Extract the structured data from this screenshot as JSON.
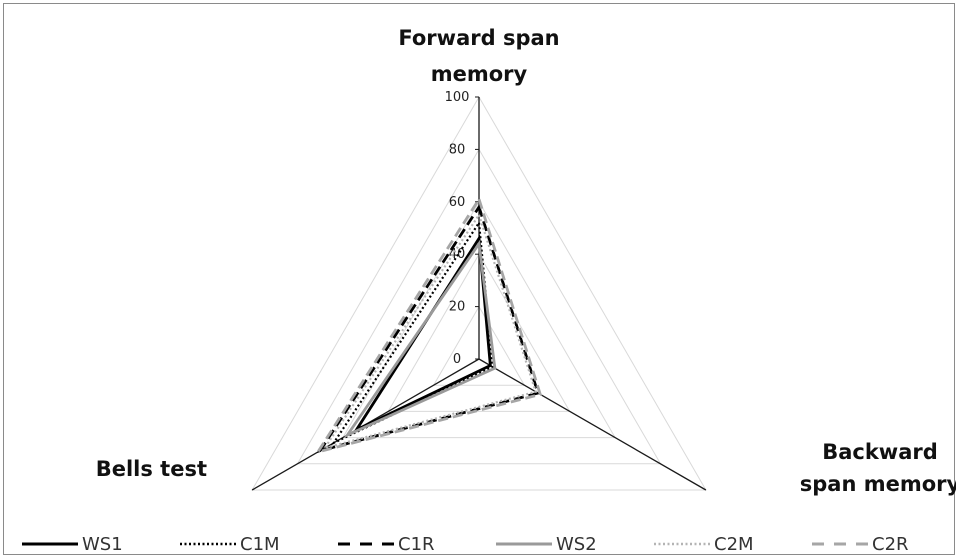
{
  "chart_data": {
    "type": "radar",
    "title": "",
    "axes": [
      "Forward span memory",
      "Backward span memory",
      "Bells test"
    ],
    "r_ticks": [
      0,
      20,
      40,
      60,
      80,
      100
    ],
    "r_range": [
      0,
      100
    ],
    "grid": true,
    "legend_position": "bottom",
    "series": [
      {
        "name": "WS1",
        "values": [
          46,
          5,
          54
        ],
        "color": "#000000",
        "style": "solid"
      },
      {
        "name": "C1M",
        "values": [
          52,
          6,
          64
        ],
        "color": "#000000",
        "style": "dotted"
      },
      {
        "name": "C1R",
        "values": [
          58,
          26,
          70
        ],
        "color": "#000000",
        "style": "dashed"
      },
      {
        "name": "WS2",
        "values": [
          44,
          7,
          58
        ],
        "color": "#9a9a9a",
        "style": "solid"
      },
      {
        "name": "C2M",
        "values": [
          55,
          25,
          68
        ],
        "color": "#b4b4b4",
        "style": "dotted"
      },
      {
        "name": "C2R",
        "values": [
          61,
          27,
          71
        ],
        "color": "#a6a6a6",
        "style": "dashed"
      }
    ]
  }
}
